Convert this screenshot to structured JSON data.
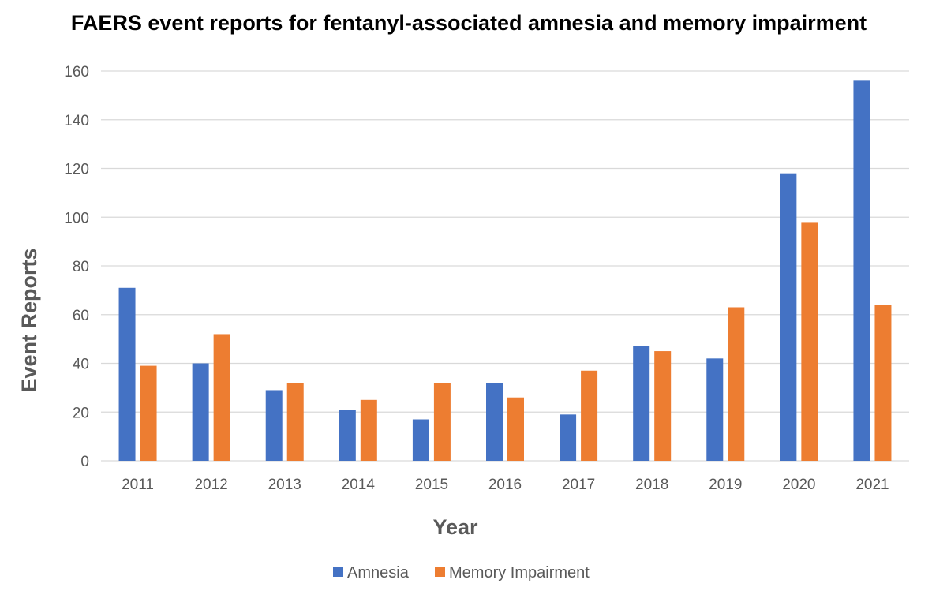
{
  "chart_data": {
    "type": "bar",
    "title": "FAERS event reports for fentanyl-associated amnesia and memory impairment",
    "xlabel": "Year",
    "ylabel": "Event Reports",
    "categories": [
      "2011",
      "2012",
      "2013",
      "2014",
      "2015",
      "2016",
      "2017",
      "2018",
      "2019",
      "2020",
      "2021"
    ],
    "series": [
      {
        "name": "Amnesia",
        "color": "#4472c4",
        "values": [
          71,
          40,
          29,
          21,
          17,
          32,
          19,
          47,
          42,
          118,
          156
        ]
      },
      {
        "name": "Memory Impairment",
        "color": "#ed7d31",
        "values": [
          39,
          52,
          32,
          25,
          32,
          26,
          37,
          45,
          63,
          98,
          64
        ]
      }
    ],
    "ylim": [
      0,
      160
    ],
    "yticks": [
      0,
      20,
      40,
      60,
      80,
      100,
      120,
      140,
      160
    ],
    "grid": true,
    "legend_position": "bottom"
  }
}
